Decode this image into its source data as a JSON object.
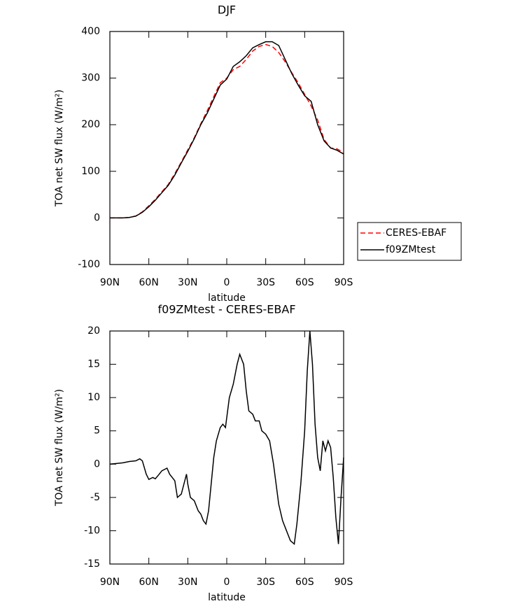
{
  "chart_data": [
    {
      "type": "line",
      "title": "DJF",
      "x_label": "latitude",
      "y_label": "TOA net SW flux (W/m²)",
      "x": [
        90,
        85,
        80,
        75,
        70,
        65,
        60,
        55,
        50,
        45,
        40,
        35,
        30,
        25,
        20,
        15,
        10,
        5,
        0,
        -5,
        -10,
        -15,
        -20,
        -25,
        -30,
        -35,
        -40,
        -45,
        -50,
        -55,
        -60,
        -65,
        -70,
        -75,
        -80,
        -85,
        -90
      ],
      "series": [
        {
          "name": "CERES-EBAF",
          "color": "#ff0000",
          "style": "dashed",
          "values": [
            0,
            0,
            0,
            1,
            4,
            13,
            26,
            40,
            56,
            72,
            95,
            120,
            146,
            172,
            202,
            230,
            260,
            290,
            300,
            318,
            325,
            340,
            358,
            368,
            372,
            368,
            355,
            335,
            312,
            290,
            265,
            240,
            210,
            168,
            150,
            148,
            140
          ]
        },
        {
          "name": "f09ZMtest",
          "color": "#000000",
          "style": "solid",
          "values": [
            0,
            0,
            0,
            1,
            4,
            12,
            24,
            38,
            54,
            70,
            92,
            118,
            143,
            170,
            200,
            225,
            255,
            285,
            298,
            325,
            335,
            348,
            365,
            372,
            378,
            378,
            370,
            340,
            310,
            285,
            262,
            250,
            200,
            165,
            150,
            145,
            137
          ]
        }
      ],
      "xlim": [
        90,
        -90
      ],
      "xticks": [
        {
          "value": 90,
          "label": "90N"
        },
        {
          "value": 60,
          "label": "60N"
        },
        {
          "value": 30,
          "label": "30N"
        },
        0,
        {
          "value": -30,
          "label": "30S"
        },
        {
          "value": -60,
          "label": "60S"
        },
        {
          "value": -90,
          "label": "90S"
        }
      ],
      "ylim": [
        -100,
        400
      ],
      "yticks": [
        -100,
        0,
        100,
        200,
        300,
        400
      ],
      "legend": "right"
    },
    {
      "type": "line",
      "title": "f09ZMtest - CERES-EBAF",
      "x_label": "latitude",
      "y_label": "TOA net SW flux (W/m²)",
      "x": [
        90,
        85,
        80,
        75,
        70,
        67,
        65,
        62,
        60,
        57,
        55,
        52,
        50,
        46,
        44,
        42,
        40,
        38,
        35,
        33,
        31,
        30,
        28,
        25,
        22,
        20,
        18,
        16,
        14,
        12,
        10,
        8,
        5,
        3,
        1,
        0,
        -2,
        -5,
        -8,
        -10,
        -13,
        -15,
        -17,
        -20,
        -22,
        -25,
        -27,
        -30,
        -33,
        -36,
        -38,
        -40,
        -43,
        -46,
        -49,
        -52,
        -54,
        -57,
        -60,
        -62,
        -64,
        -66,
        -68,
        -70,
        -72,
        -74,
        -76,
        -78,
        -80,
        -82,
        -84,
        -86,
        -88,
        -90
      ],
      "series": [
        {
          "name": "f09ZMtest - CERES-EBAF",
          "color": "#000000",
          "style": "solid",
          "values": [
            0,
            0.1,
            0.2,
            0.4,
            0.5,
            0.8,
            0.5,
            -1.5,
            -2.3,
            -2,
            -2.2,
            -1.5,
            -1,
            -0.6,
            -1.5,
            -2,
            -2.5,
            -5,
            -4.5,
            -3,
            -1.5,
            -3,
            -5,
            -5.5,
            -7,
            -7.5,
            -8.5,
            -9,
            -7,
            -3,
            1,
            3.5,
            5.5,
            6,
            5.5,
            7,
            10,
            12,
            15,
            16.5,
            15,
            11,
            8,
            7.5,
            6.5,
            6.5,
            5,
            4.5,
            3.5,
            0,
            -3,
            -6,
            -8.5,
            -10,
            -11.5,
            -12,
            -9,
            -3,
            5,
            14,
            20,
            15,
            6,
            1,
            -1,
            3.5,
            2,
            3.5,
            2.5,
            -2,
            -8,
            -12,
            -5,
            1
          ]
        }
      ],
      "xlim": [
        90,
        -90
      ],
      "xticks": [
        {
          "value": 90,
          "label": "90N"
        },
        {
          "value": 60,
          "label": "60N"
        },
        {
          "value": 30,
          "label": "30N"
        },
        0,
        {
          "value": -30,
          "label": "30S"
        },
        {
          "value": -60,
          "label": "60S"
        },
        {
          "value": -90,
          "label": "90S"
        }
      ],
      "ylim": [
        -15,
        20
      ],
      "yticks": [
        -15,
        -10,
        -5,
        0,
        5,
        10,
        15,
        20
      ]
    }
  ]
}
